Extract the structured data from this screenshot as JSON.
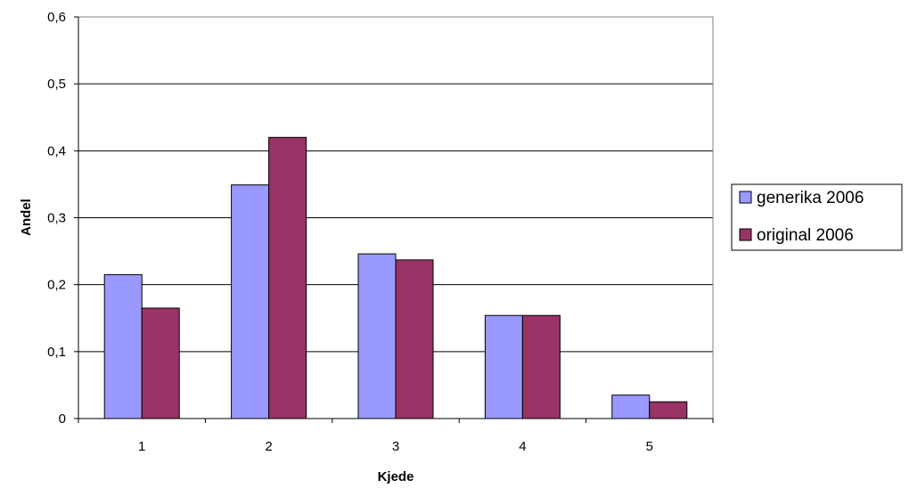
{
  "chart_data": {
    "type": "bar",
    "xlabel": "Kjede",
    "ylabel": "Andel",
    "categories": [
      "1",
      "2",
      "3",
      "4",
      "5"
    ],
    "series": [
      {
        "name": "generika 2006",
        "color": "#9999ff",
        "values": [
          0.215,
          0.349,
          0.246,
          0.154,
          0.035
        ]
      },
      {
        "name": "original 2006",
        "color": "#993366",
        "values": [
          0.165,
          0.42,
          0.237,
          0.154,
          0.025
        ]
      }
    ],
    "ylim": [
      0,
      0.6
    ],
    "yticks": [
      "0",
      "0,1",
      "0,2",
      "0,3",
      "0,4",
      "0,5",
      "0,6"
    ],
    "grid": true,
    "legend_position": "right"
  }
}
